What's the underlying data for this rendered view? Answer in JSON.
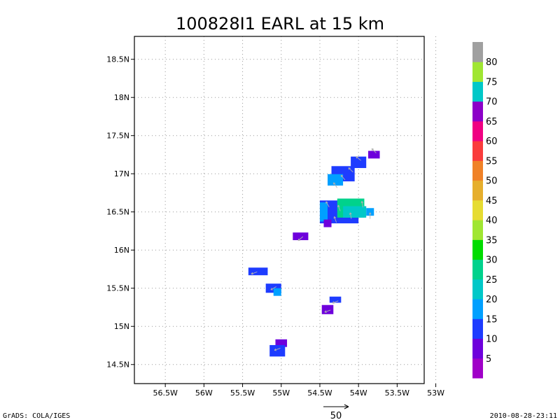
{
  "chart_data": {
    "type": "heatmap",
    "title": "100828I1 EARL at 15 km",
    "x_ticks": [
      {
        "value": -56.5,
        "label": "56.5W"
      },
      {
        "value": -56.0,
        "label": "56W"
      },
      {
        "value": -55.5,
        "label": "55.5W"
      },
      {
        "value": -55.0,
        "label": "55W"
      },
      {
        "value": -54.5,
        "label": "54.5W"
      },
      {
        "value": -54.0,
        "label": "54W"
      },
      {
        "value": -53.5,
        "label": "53.5W"
      },
      {
        "value": -53.0,
        "label": "53W"
      }
    ],
    "y_ticks": [
      {
        "value": 14.5,
        "label": "14.5N"
      },
      {
        "value": 15.0,
        "label": "15N"
      },
      {
        "value": 15.5,
        "label": "15.5N"
      },
      {
        "value": 16.0,
        "label": "16N"
      },
      {
        "value": 16.5,
        "label": "16.5N"
      },
      {
        "value": 17.0,
        "label": "17N"
      },
      {
        "value": 17.5,
        "label": "17.5N"
      },
      {
        "value": 18.0,
        "label": "18N"
      },
      {
        "value": 18.5,
        "label": "18.5N"
      }
    ],
    "xlim": [
      -56.9,
      -53.15
    ],
    "ylim": [
      14.25,
      18.8
    ],
    "grid": true,
    "cell_size_deg": 0.05,
    "colorbar": {
      "levels": [
        "5",
        "10",
        "15",
        "20",
        "25",
        "30",
        "35",
        "40",
        "45",
        "50",
        "55",
        "60",
        "65",
        "70",
        "75",
        "80"
      ],
      "colors": [
        "#a000c8",
        "#6e00dc",
        "#1e3cff",
        "#00a0ff",
        "#00c8c8",
        "#00d28c",
        "#00dc00",
        "#a0e632",
        "#e6dc32",
        "#e6af2d",
        "#f08228",
        "#fa3c3c",
        "#f00082",
        "#8c00c8",
        "#00c8c8",
        "#a0e632",
        "#a0a0a0"
      ]
    },
    "blobs": [
      {
        "lon": -53.8,
        "lat": 17.25,
        "w": 0.15,
        "h": 0.1,
        "color": "#6e00dc"
      },
      {
        "lon": -54.0,
        "lat": 17.15,
        "w": 0.2,
        "h": 0.15,
        "color": "#1e3cff"
      },
      {
        "lon": -54.2,
        "lat": 17.0,
        "w": 0.3,
        "h": 0.2,
        "color": "#1e3cff"
      },
      {
        "lon": -54.3,
        "lat": 16.92,
        "w": 0.2,
        "h": 0.15,
        "color": "#00a0ff"
      },
      {
        "lon": -54.25,
        "lat": 16.5,
        "w": 0.5,
        "h": 0.3,
        "color": "#1e3cff"
      },
      {
        "lon": -54.1,
        "lat": 16.55,
        "w": 0.35,
        "h": 0.25,
        "color": "#00d28c"
      },
      {
        "lon": -54.05,
        "lat": 16.5,
        "w": 0.3,
        "h": 0.15,
        "color": "#00c8c8"
      },
      {
        "lon": -53.85,
        "lat": 16.5,
        "w": 0.1,
        "h": 0.1,
        "color": "#00a0ff"
      },
      {
        "lon": -54.45,
        "lat": 16.5,
        "w": 0.1,
        "h": 0.25,
        "color": "#00a0ff"
      },
      {
        "lon": -54.4,
        "lat": 16.35,
        "w": 0.1,
        "h": 0.1,
        "color": "#6e00dc"
      },
      {
        "lon": -54.75,
        "lat": 16.18,
        "w": 0.2,
        "h": 0.1,
        "color": "#6e00dc"
      },
      {
        "lon": -55.3,
        "lat": 15.72,
        "w": 0.25,
        "h": 0.1,
        "color": "#1e3cff"
      },
      {
        "lon": -55.1,
        "lat": 15.5,
        "w": 0.2,
        "h": 0.12,
        "color": "#1e3cff"
      },
      {
        "lon": -55.05,
        "lat": 15.45,
        "w": 0.1,
        "h": 0.1,
        "color": "#00a0ff"
      },
      {
        "lon": -54.4,
        "lat": 15.22,
        "w": 0.15,
        "h": 0.12,
        "color": "#6e00dc"
      },
      {
        "lon": -54.3,
        "lat": 15.35,
        "w": 0.15,
        "h": 0.08,
        "color": "#1e3cff"
      },
      {
        "lon": -55.0,
        "lat": 14.78,
        "w": 0.15,
        "h": 0.1,
        "color": "#6e00dc"
      },
      {
        "lon": -55.05,
        "lat": 14.68,
        "w": 0.2,
        "h": 0.15,
        "color": "#1e3cff"
      }
    ],
    "wind_arrows": [
      {
        "lon": -53.8,
        "lat": 17.3,
        "dir": 135
      },
      {
        "lon": -54.0,
        "lat": 17.2,
        "dir": 140
      },
      {
        "lon": -54.1,
        "lat": 17.05,
        "dir": 135
      },
      {
        "lon": -54.2,
        "lat": 16.95,
        "dir": 130
      },
      {
        "lon": -54.3,
        "lat": 16.85,
        "dir": 125
      },
      {
        "lon": -54.4,
        "lat": 16.6,
        "dir": 120
      },
      {
        "lon": -54.25,
        "lat": 16.55,
        "dir": 110
      },
      {
        "lon": -54.1,
        "lat": 16.45,
        "dir": 100
      },
      {
        "lon": -53.95,
        "lat": 16.6,
        "dir": 100
      },
      {
        "lon": -53.85,
        "lat": 16.45,
        "dir": 90
      },
      {
        "lon": -54.3,
        "lat": 16.4,
        "dir": 110
      },
      {
        "lon": -54.75,
        "lat": 16.15,
        "dir": 220
      },
      {
        "lon": -55.35,
        "lat": 15.7,
        "dir": 200
      },
      {
        "lon": -55.1,
        "lat": 15.5,
        "dir": 210
      },
      {
        "lon": -54.4,
        "lat": 15.2,
        "dir": 200
      },
      {
        "lon": -54.3,
        "lat": 15.32,
        "dir": 200
      },
      {
        "lon": -55.05,
        "lat": 14.7,
        "dir": 200
      }
    ],
    "reference_vector": {
      "label": "50"
    }
  },
  "footer": {
    "left": "GrADS: COLA/IGES",
    "right": "2010-08-28-23:11"
  }
}
